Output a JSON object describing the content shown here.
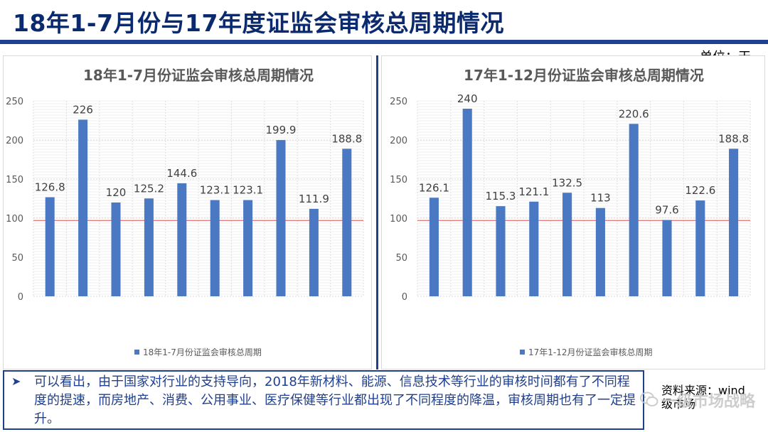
{
  "page": {
    "title": "18年1-7月份与17年度证监会审核总周期情况",
    "unit": "单位：天",
    "conclusion": "可以看出，由于国家对行业的支持导向，2018年新材料、能源、信息技术等行业的审核时间都有了不同程度的提速，而房地产、消费、公用事业、医疗保健等行业都出现了不同程度的降温，审核周期也有了一定提升。",
    "source_line1": "资料来源：wind",
    "source_line2": "级市场",
    "watermark": "一级市场战略",
    "accent_color": "#1f3f8f",
    "bar_color": "#4a78c2",
    "reference_line_color": "#e06666"
  },
  "chart_data": [
    {
      "type": "bar",
      "title": "18年1-7月份证监会审核总周期情况",
      "xlabel": "",
      "ylabel": "",
      "ylim": [
        0,
        250
      ],
      "yticks": [
        0,
        50,
        100,
        150,
        200,
        250
      ],
      "reference_line": 97,
      "grid": true,
      "legend_position": "bottom",
      "series": [
        {
          "name": "18年1-7月份证监会审核总周期",
          "values": [
            126.8,
            226,
            120,
            125.2,
            144.6,
            123.1,
            123.1,
            199.9,
            111.9,
            188.8
          ],
          "labels": [
            "126.8",
            "226",
            "120",
            "125.2",
            "144.6",
            "123.1",
            "123.1",
            "199.9",
            "111.9",
            "188.8"
          ]
        }
      ]
    },
    {
      "type": "bar",
      "title": "17年1-12月份证监会审核总周期情况",
      "xlabel": "",
      "ylabel": "",
      "ylim": [
        0,
        250
      ],
      "yticks": [
        0,
        50,
        100,
        150,
        200,
        250
      ],
      "reference_line": 97,
      "grid": true,
      "legend_position": "bottom",
      "series": [
        {
          "name": "17年1-12月份证监会审核总周期",
          "values": [
            126.1,
            240,
            115.3,
            121.1,
            132.5,
            113,
            220.6,
            97.6,
            122.6,
            188.8
          ],
          "labels": [
            "126.1",
            "240",
            "115.3",
            "121.1",
            "132.5",
            "113",
            "220.6",
            "97.6",
            "122.6",
            "188.8"
          ]
        }
      ]
    }
  ]
}
